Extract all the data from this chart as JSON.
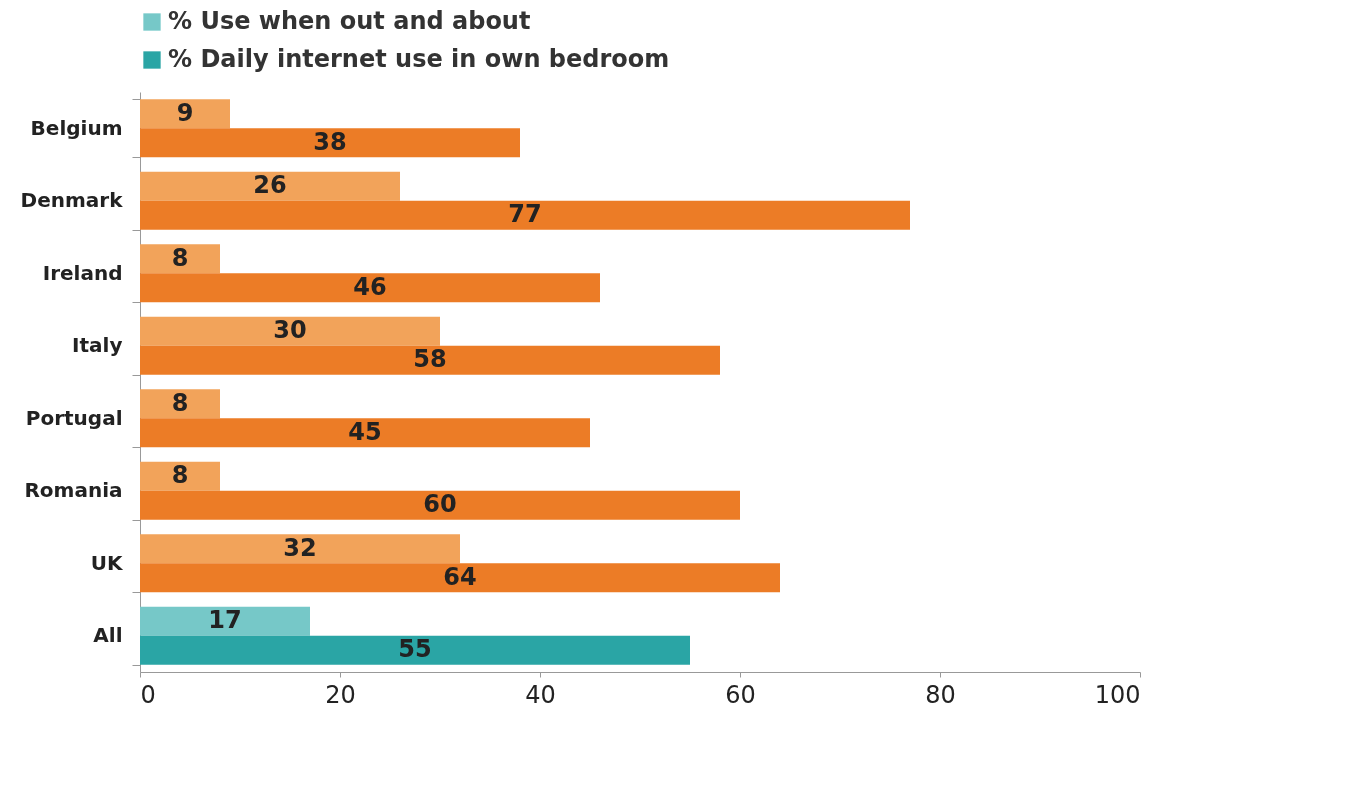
{
  "chart_data": {
    "type": "bar",
    "orientation": "horizontal",
    "categories": [
      "Belgium",
      "Denmark",
      "Ireland",
      "Italy",
      "Portugal",
      "Romania",
      "UK",
      "All"
    ],
    "series": [
      {
        "name": "% Use when out and about",
        "color": "#76c8c8",
        "colors": [
          "#f2a35a",
          "#f2a35a",
          "#f2a35a",
          "#f2a35a",
          "#f2a35a",
          "#f2a35a",
          "#f2a35a",
          "#76c8c8"
        ],
        "values": [
          9,
          26,
          8,
          30,
          8,
          8,
          32,
          17
        ]
      },
      {
        "name": "% Daily internet use in own bedroom",
        "color": "#2aa5a5",
        "colors": [
          "#ec7c26",
          "#ec7c26",
          "#ec7c26",
          "#ec7c26",
          "#ec7c26",
          "#ec7c26",
          "#ec7c26",
          "#2aa5a5"
        ],
        "values": [
          38,
          77,
          46,
          58,
          45,
          60,
          64,
          55
        ]
      }
    ],
    "xlim": [
      0,
      100
    ],
    "xticks": [
      0,
      20,
      40,
      60,
      80,
      100
    ],
    "data_labels": true,
    "legend": "top left",
    "grid": false
  }
}
